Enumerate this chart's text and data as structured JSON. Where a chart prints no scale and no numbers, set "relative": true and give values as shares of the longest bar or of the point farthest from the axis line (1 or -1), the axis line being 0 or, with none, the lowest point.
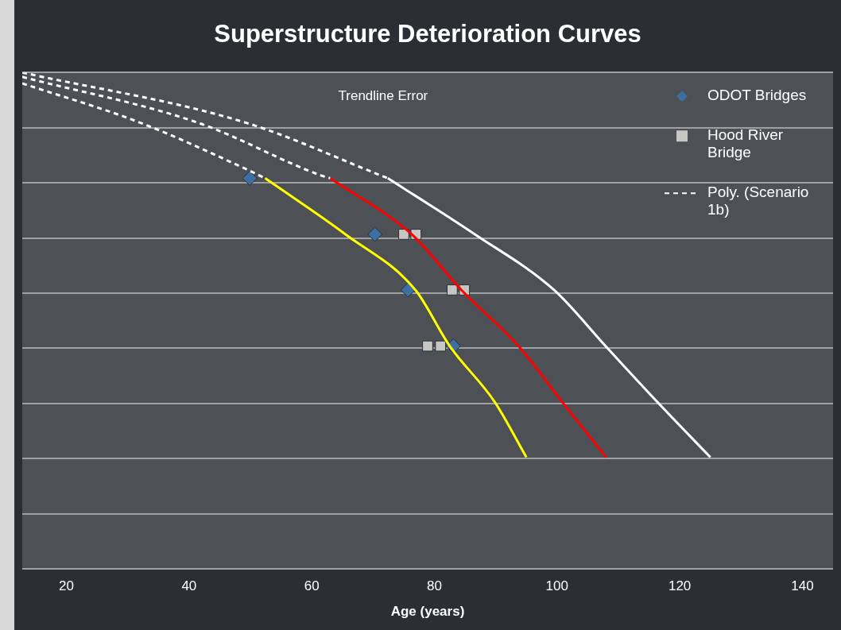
{
  "chart_data": {
    "type": "line",
    "title": "Superstructure Deterioration Curves",
    "xlabel": "Age (years)",
    "xlim": [
      12.8,
      145
    ],
    "xticks": [
      20,
      40,
      60,
      80,
      100,
      120,
      140
    ],
    "relative": true,
    "grid": "y",
    "legend": "top right",
    "annotations": [
      "Trendline Error"
    ],
    "series": [
      {
        "name": "ODOT Bridges",
        "type": "scatter",
        "color": "#3d6fa3",
        "marker": "diamond",
        "x": [
          49.9,
          70.3,
          75.7,
          83.1
        ],
        "values": [
          0.787,
          0.674,
          0.562,
          0.449
        ]
      },
      {
        "name": "Hood River Bridge",
        "type": "scatter",
        "color": "#c8c6c2",
        "marker": "square",
        "x": [
          75,
          77,
          82.9,
          84.9,
          78.9,
          81
        ],
        "values": [
          0.674,
          0.674,
          0.562,
          0.562,
          0.449,
          0.449
        ]
      },
      {
        "name": "Poly. (Scenario 1b)",
        "type": "line",
        "color": "#ffffff",
        "line_style": "dashed",
        "marker": "none",
        "x": [
          12.8,
          32,
          49.2,
          52.4
        ],
        "values": [
          0.978,
          0.899,
          0.806,
          0.787
        ]
      },
      {
        "type": "line",
        "color": "#ffffff",
        "line_style": "dashed",
        "marker": "none",
        "x": [
          12.8,
          41.4,
          62.1,
          63
        ],
        "values": [
          0.991,
          0.899,
          0.79,
          0.787
        ]
      },
      {
        "type": "line",
        "color": "#ffffff",
        "line_style": "dashed",
        "marker": "none",
        "x": [
          12.8,
          49.2,
          72.4
        ],
        "values": [
          1,
          0.899,
          0.787
        ]
      },
      {
        "type": "line",
        "color": "#ffff00",
        "line_style": "solid",
        "marker": "none",
        "x": [
          52.4,
          65.5,
          76.9,
          82.5,
          89.8,
          95
        ],
        "values": [
          0.787,
          0.674,
          0.562,
          0.449,
          0.337,
          0.225
        ]
      },
      {
        "type": "line",
        "color": "#ff0000",
        "line_style": "solid",
        "marker": "none",
        "x": [
          63,
          76.3,
          84.4,
          93.7,
          100.8,
          108
        ],
        "values": [
          0.787,
          0.674,
          0.562,
          0.449,
          0.337,
          0.225
        ]
      },
      {
        "type": "line",
        "color": "#ffffff",
        "line_style": "solid",
        "marker": "none",
        "x": [
          72.4,
          86.6,
          99.5,
          107.9,
          116.3,
          125
        ],
        "values": [
          0.787,
          0.674,
          0.562,
          0.449,
          0.337,
          0.225
        ]
      }
    ]
  }
}
